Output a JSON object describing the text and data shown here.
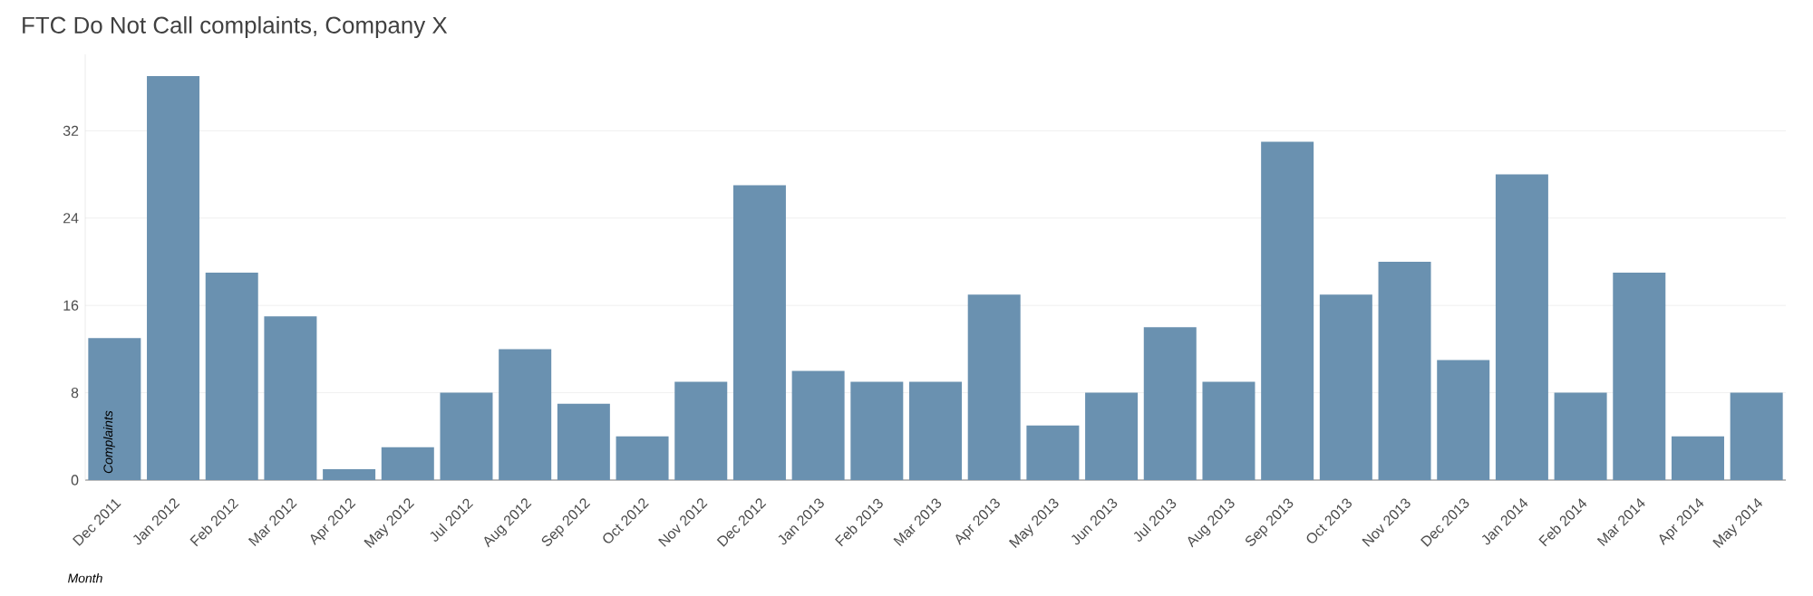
{
  "chart_data": {
    "type": "bar",
    "title": "FTC Do Not Call complaints, Company X",
    "xlabel": "Month",
    "ylabel": "Complaints",
    "categories": [
      "Dec 2011",
      "Jan 2012",
      "Feb 2012",
      "Mar 2012",
      "Apr 2012",
      "May 2012",
      "Jul 2012",
      "Aug 2012",
      "Sep 2012",
      "Oct 2012",
      "Nov 2012",
      "Dec 2012",
      "Jan 2013",
      "Feb 2013",
      "Mar 2013",
      "Apr 2013",
      "May 2013",
      "Jun 2013",
      "Jul 2013",
      "Aug 2013",
      "Sep 2013",
      "Oct 2013",
      "Nov 2013",
      "Dec 2013",
      "Jan 2014",
      "Feb 2014",
      "Mar 2014",
      "Apr 2014",
      "May 2014"
    ],
    "values": [
      13,
      37,
      19,
      15,
      1,
      3,
      8,
      12,
      7,
      4,
      9,
      27,
      10,
      9,
      9,
      17,
      5,
      8,
      14,
      9,
      31,
      17,
      20,
      11,
      28,
      8,
      19,
      4,
      8
    ],
    "color": "#6a91b0",
    "ylim": [
      0,
      39
    ],
    "yticks": [
      0,
      8,
      16,
      24,
      32
    ],
    "grid": "y"
  }
}
